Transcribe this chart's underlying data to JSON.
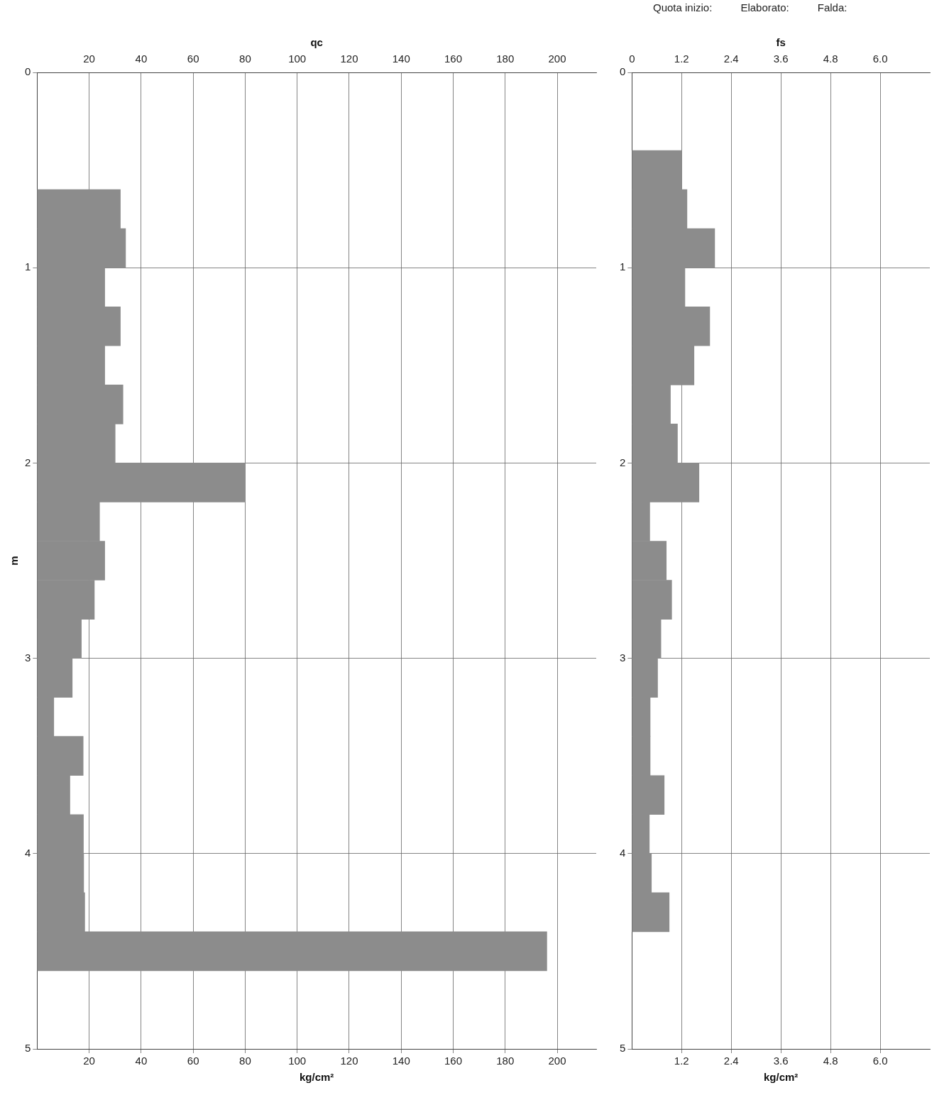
{
  "chart_data": [
    {
      "type": "bar",
      "orientation": "horizontal",
      "x2label": "qc",
      "xlabel": "kg/cm²",
      "ylabel": "m",
      "x": [
        0.7,
        0.9,
        1.1,
        1.3,
        1.5,
        1.7,
        1.9,
        2.1,
        2.3,
        2.5,
        2.7,
        2.9,
        3.1,
        3.3,
        3.5,
        3.7,
        3.9,
        4.1,
        4.3,
        4.5
      ],
      "values": [
        32,
        34,
        26,
        32,
        26,
        33,
        30,
        80,
        24,
        26,
        22,
        17,
        13.5,
        6.4,
        17.7,
        12.6,
        17.8,
        17.9,
        18.3,
        196
      ],
      "color": "#8c8c8c",
      "xlim": [
        0,
        215
      ],
      "xticks": [
        20,
        40,
        60,
        80,
        100,
        120,
        140,
        160,
        180,
        200
      ],
      "x2lim": [
        0,
        215
      ],
      "x2ticks": [
        20,
        40,
        60,
        80,
        100,
        120,
        140,
        160,
        180,
        200
      ],
      "ylim": [
        5,
        0
      ],
      "yticks": [
        0,
        1,
        2,
        3,
        4,
        5
      ],
      "grid": true,
      "legend": false
    },
    {
      "type": "bar",
      "orientation": "horizontal",
      "x2label": "fs",
      "xlabel": "kg/cm²",
      "x": [
        0.5,
        0.7,
        0.9,
        1.1,
        1.3,
        1.5,
        1.7,
        1.9,
        2.1,
        2.3,
        2.5,
        2.7,
        2.9,
        3.1,
        3.3,
        3.5,
        3.7,
        3.9,
        4.1,
        4.3
      ],
      "values": [
        1.2,
        1.33,
        2.0,
        1.28,
        1.88,
        1.5,
        0.93,
        1.1,
        1.62,
        0.43,
        0.83,
        0.96,
        0.7,
        0.62,
        0.44,
        0.44,
        0.78,
        0.42,
        0.47,
        0.9
      ],
      "color": "#8c8c8c",
      "xlim": [
        0,
        7.2
      ],
      "xticks": [
        1.2,
        2.4,
        3.6,
        4.8,
        {
          "value": 6,
          "label": "6.0"
        }
      ],
      "x2lim": [
        0,
        7.2
      ],
      "x2ticks": [
        {
          "value": 0,
          "label": "0"
        },
        1.2,
        2.4,
        3.6,
        4.8,
        {
          "value": 6,
          "label": "6.0"
        }
      ],
      "ylim": [
        5,
        0
      ],
      "yticks": [
        0,
        1,
        2,
        3,
        4,
        5
      ],
      "grid": true,
      "legend": false,
      "annotations": [
        "Quota inizio:",
        "Elaborato:",
        "Falda:"
      ]
    }
  ]
}
